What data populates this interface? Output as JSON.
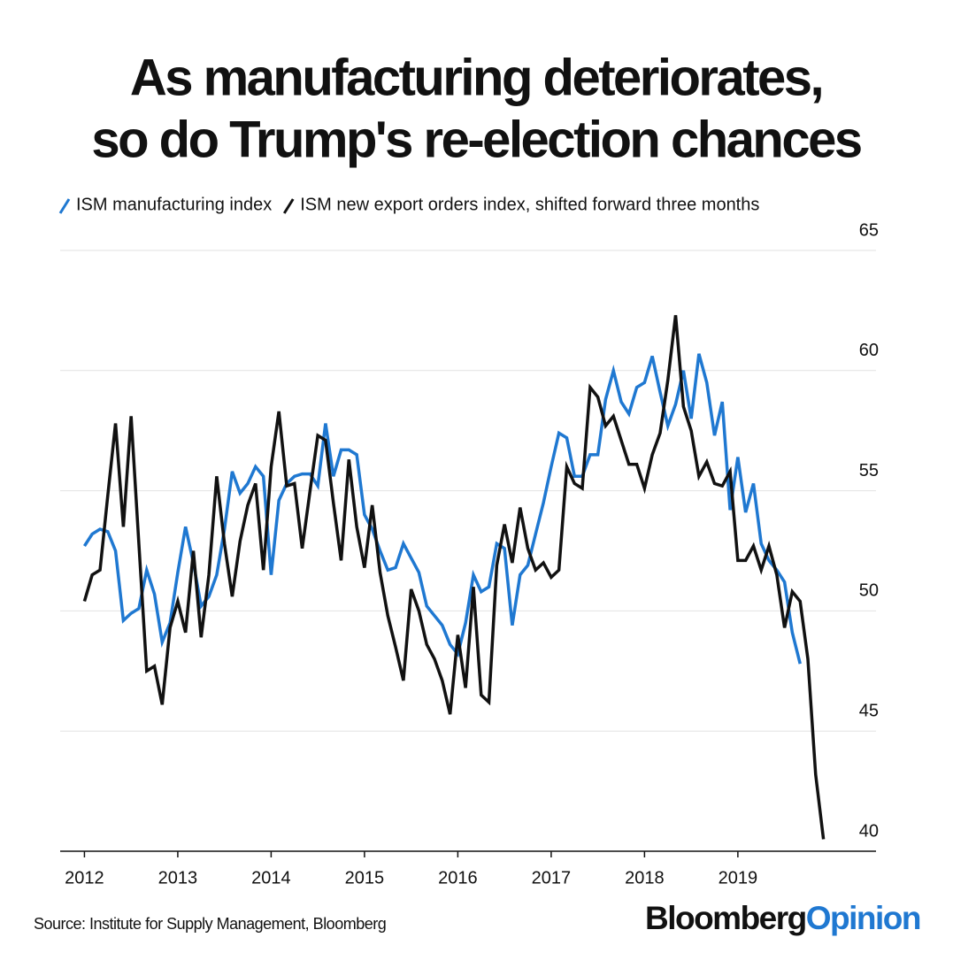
{
  "chart_data": {
    "type": "line",
    "title": [
      "As manufacturing deteriorates,",
      "so do Trump's re-election chances"
    ],
    "source": "Source: Institute for Supply Management, Bloomberg",
    "brand": "Bloomberg",
    "brand_suffix": "Opinion",
    "x": [
      2012,
      2012.083,
      2012.167,
      2012.25,
      2012.333,
      2012.417,
      2012.5,
      2012.583,
      2012.667,
      2012.75,
      2012.833,
      2012.917,
      2013,
      2013.083,
      2013.167,
      2013.25,
      2013.333,
      2013.417,
      2013.5,
      2013.583,
      2013.667,
      2013.75,
      2013.833,
      2013.917,
      2014,
      2014.083,
      2014.167,
      2014.25,
      2014.333,
      2014.417,
      2014.5,
      2014.583,
      2014.667,
      2014.75,
      2014.833,
      2014.917,
      2015,
      2015.083,
      2015.167,
      2015.25,
      2015.333,
      2015.417,
      2015.5,
      2015.583,
      2015.667,
      2015.75,
      2015.833,
      2015.917,
      2016,
      2016.083,
      2016.167,
      2016.25,
      2016.333,
      2016.417,
      2016.5,
      2016.583,
      2016.667,
      2016.75,
      2016.833,
      2016.917,
      2017,
      2017.083,
      2017.167,
      2017.25,
      2017.333,
      2017.417,
      2017.5,
      2017.583,
      2017.667,
      2017.75,
      2017.833,
      2017.917,
      2018,
      2018.083,
      2018.167,
      2018.25,
      2018.333,
      2018.417,
      2018.5,
      2018.583,
      2018.667,
      2018.75,
      2018.833,
      2018.917,
      2019,
      2019.083,
      2019.167,
      2019.25,
      2019.333,
      2019.417,
      2019.5,
      2019.583,
      2019.667,
      2019.75,
      2019.833,
      2019.917
    ],
    "series": [
      {
        "name": "ISM manufacturing index",
        "color": "#1f78d1",
        "values": [
          52.7,
          53.2,
          53.4,
          53.3,
          52.5,
          49.6,
          49.9,
          50.1,
          51.7,
          50.7,
          48.7,
          49.5,
          51.6,
          53.5,
          52.0,
          50.2,
          50.6,
          51.5,
          53.4,
          55.8,
          54.9,
          55.3,
          56.0,
          55.6,
          51.5,
          54.6,
          55.3,
          55.6,
          55.7,
          55.7,
          55.2,
          57.8,
          55.6,
          56.7,
          56.7,
          56.5,
          54.0,
          53.4,
          52.5,
          51.7,
          51.8,
          52.8,
          52.2,
          51.6,
          50.2,
          49.8,
          49.4,
          48.6,
          48.2,
          49.5,
          51.5,
          50.8,
          51.0,
          52.8,
          52.6,
          49.4,
          51.5,
          51.9,
          53.2,
          54.5,
          56.0,
          57.4,
          57.2,
          55.6,
          55.6,
          56.5,
          56.5,
          58.8,
          60.0,
          58.7,
          58.2,
          59.3,
          59.5,
          60.6,
          59.1,
          57.7,
          58.6,
          60.0,
          58.0,
          60.7,
          59.5,
          57.3,
          58.7,
          54.2,
          56.4,
          54.1,
          55.3,
          52.8,
          52.1,
          51.7,
          51.2,
          49.1,
          47.8,
          null,
          null,
          null
        ]
      },
      {
        "name": "ISM new export orders index, shifted forward three months",
        "color": "#111111",
        "values": [
          50.4,
          51.5,
          51.7,
          54.8,
          57.8,
          53.5,
          58.1,
          52.8,
          47.5,
          47.7,
          46.1,
          49.3,
          50.4,
          49.1,
          52.5,
          48.9,
          51.5,
          55.6,
          52.8,
          50.6,
          52.9,
          54.4,
          55.3,
          51.7,
          56.0,
          58.3,
          55.2,
          55.3,
          52.6,
          55.0,
          57.3,
          57.1,
          54.5,
          52.1,
          56.3,
          53.5,
          51.8,
          54.4,
          51.6,
          49.8,
          48.5,
          47.1,
          50.9,
          50.0,
          48.6,
          48.0,
          47.1,
          45.7,
          49.0,
          46.8,
          51.0,
          46.5,
          46.2,
          51.9,
          53.6,
          52.0,
          54.3,
          52.6,
          51.7,
          52.0,
          51.4,
          51.7,
          56.0,
          55.3,
          55.1,
          59.3,
          58.9,
          57.7,
          58.1,
          57.1,
          56.1,
          56.1,
          55.1,
          56.5,
          57.4,
          59.6,
          62.3,
          58.5,
          57.5,
          55.6,
          56.2,
          55.3,
          55.2,
          55.8,
          52.1,
          52.1,
          52.7,
          51.7,
          52.7,
          51.5,
          49.3,
          50.8,
          50.4,
          48.0,
          43.2,
          40.5
        ]
      }
    ],
    "xlim": [
      2011.74,
      2020.48
    ],
    "xticks": [
      2012,
      2013,
      2014,
      2015,
      2016,
      2017,
      2018,
      2019
    ],
    "ylim": [
      40,
      65
    ],
    "yticks": [
      40,
      45,
      50,
      55,
      60,
      65
    ],
    "grid": true,
    "legend": "top-left"
  }
}
